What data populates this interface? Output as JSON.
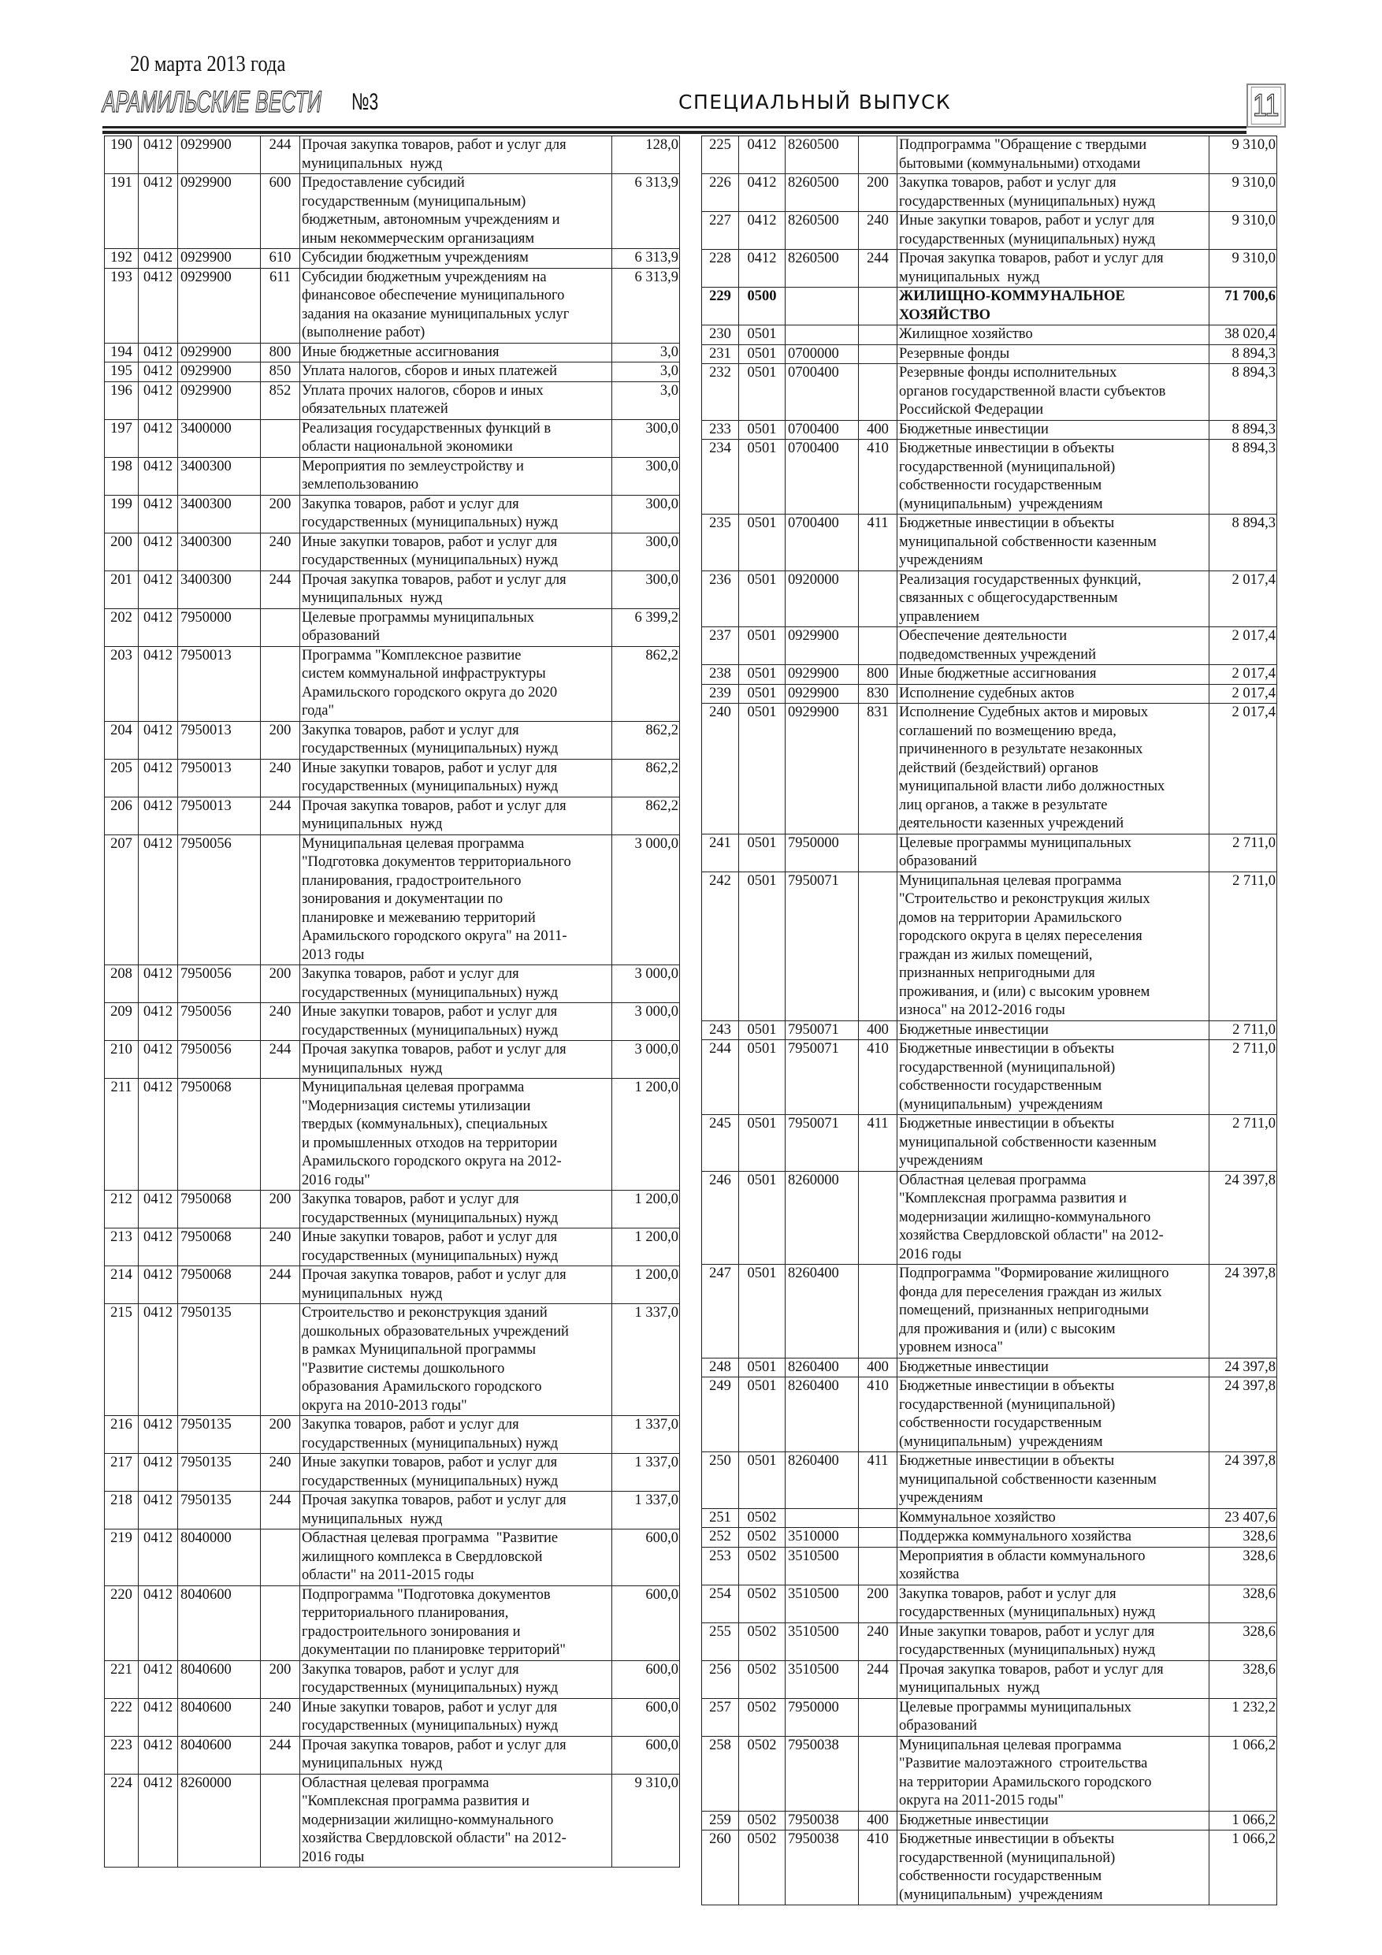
{
  "header": {
    "date": "20 марта 2013 года",
    "masthead": "АРАМИЛЬСКИЕ ВЕСТИ",
    "issue": "№3",
    "section": "СПЕЦИАЛЬНЫЙ ВЫПУСК",
    "page_number": "11"
  },
  "left_table": [
    [
      "190",
      "0412",
      "0929900",
      "244",
      "Прочая закупка товаров, работ и услуг для\nмуниципальных  нужд",
      "128,0"
    ],
    [
      "191",
      "0412",
      "0929900",
      "600",
      "Предоставление субсидий\nгосударственным (муниципальным)\nбюджетным, автономным учреждениям и\nиным некоммерческим организациям",
      "6 313,9"
    ],
    [
      "192",
      "0412",
      "0929900",
      "610",
      "Субсидии бюджетным учреждениям",
      "6 313,9"
    ],
    [
      "193",
      "0412",
      "0929900",
      "611",
      "Субсидии бюджетным учреждениям на\nфинансовое обеспечение муниципального\nзадания на оказание муниципальных услуг\n(выполнение работ)",
      "6 313,9"
    ],
    [
      "194",
      "0412",
      "0929900",
      "800",
      "Иные бюджетные ассигнования",
      "3,0"
    ],
    [
      "195",
      "0412",
      "0929900",
      "850",
      "Уплата налогов, сборов и иных платежей",
      "3,0"
    ],
    [
      "196",
      "0412",
      "0929900",
      "852",
      "Уплата прочих налогов, сборов и иных\nобязательных платежей",
      "3,0"
    ],
    [
      "197",
      "0412",
      "3400000",
      "",
      "Реализация государственных функций в\nобласти национальной экономики",
      "300,0"
    ],
    [
      "198",
      "0412",
      "3400300",
      "",
      "Мероприятия по землеустройству и\nземлепользованию",
      "300,0"
    ],
    [
      "199",
      "0412",
      "3400300",
      "200",
      "Закупка товаров, работ и услуг для\nгосударственных (муниципальных) нужд",
      "300,0"
    ],
    [
      "200",
      "0412",
      "3400300",
      "240",
      "Иные закупки товаров, работ и услуг для\nгосударственных (муниципальных) нужд",
      "300,0"
    ],
    [
      "201",
      "0412",
      "3400300",
      "244",
      "Прочая закупка товаров, работ и услуг для\nмуниципальных  нужд",
      "300,0"
    ],
    [
      "202",
      "0412",
      "7950000",
      "",
      "Целевые программы муниципальных\nобразований",
      "6 399,2"
    ],
    [
      "203",
      "0412",
      "7950013",
      "",
      "Программа \"Комплексное развитие\nсистем коммунальной инфраструктуры\nАрамильского городского округа до 2020\nгода\"",
      "862,2"
    ],
    [
      "204",
      "0412",
      "7950013",
      "200",
      "Закупка товаров, работ и услуг для\nгосударственных (муниципальных) нужд",
      "862,2"
    ],
    [
      "205",
      "0412",
      "7950013",
      "240",
      "Иные закупки товаров, работ и услуг для\nгосударственных (муниципальных) нужд",
      "862,2"
    ],
    [
      "206",
      "0412",
      "7950013",
      "244",
      "Прочая закупка товаров, работ и услуг для\nмуниципальных  нужд",
      "862,2"
    ],
    [
      "207",
      "0412",
      "7950056",
      "",
      "Муниципальная целевая программа\n\"Подготовка документов территориального\nпланирования, градостроительного\nзонирования и документации по\nпланировке и межеванию территорий\nАрамильского городского округа\" на 2011-\n2013 годы",
      "3 000,0"
    ],
    [
      "208",
      "0412",
      "7950056",
      "200",
      "Закупка товаров, работ и услуг для\nгосударственных (муниципальных) нужд",
      "3 000,0"
    ],
    [
      "209",
      "0412",
      "7950056",
      "240",
      "Иные закупки товаров, работ и услуг для\nгосударственных (муниципальных) нужд",
      "3 000,0"
    ],
    [
      "210",
      "0412",
      "7950056",
      "244",
      "Прочая закупка товаров, работ и услуг для\nмуниципальных  нужд",
      "3 000,0"
    ],
    [
      "211",
      "0412",
      "7950068",
      "",
      "Муниципальная целевая программа\n\"Модернизация системы утилизации\nтвердых (коммунальных), специальных\nи промышленных отходов на территории\nАрамильского городского округа на 2012-\n2016 годы\"",
      "1 200,0"
    ],
    [
      "212",
      "0412",
      "7950068",
      "200",
      "Закупка товаров, работ и услуг для\nгосударственных (муниципальных) нужд",
      "1 200,0"
    ],
    [
      "213",
      "0412",
      "7950068",
      "240",
      "Иные закупки товаров, работ и услуг для\nгосударственных (муниципальных) нужд",
      "1 200,0"
    ],
    [
      "214",
      "0412",
      "7950068",
      "244",
      "Прочая закупка товаров, работ и услуг для\nмуниципальных  нужд",
      "1 200,0"
    ],
    [
      "215",
      "0412",
      "7950135",
      "",
      "Строительство и реконструкция зданий\nдошкольных образовательных учреждений\nв рамках Муниципальной программы\n\"Развитие системы дошкольного\nобразования Арамильского городского\nокруга на 2010-2013 годы\"",
      "1 337,0"
    ],
    [
      "216",
      "0412",
      "7950135",
      "200",
      "Закупка товаров, работ и услуг для\nгосударственных (муниципальных) нужд",
      "1 337,0"
    ],
    [
      "217",
      "0412",
      "7950135",
      "240",
      "Иные закупки товаров, работ и услуг для\nгосударственных (муниципальных) нужд",
      "1 337,0"
    ],
    [
      "218",
      "0412",
      "7950135",
      "244",
      "Прочая закупка товаров, работ и услуг для\nмуниципальных  нужд",
      "1 337,0"
    ],
    [
      "219",
      "0412",
      "8040000",
      "",
      "Областная целевая программа  \"Развитие\nжилищного комплекса в Свердловской\nобласти\" на 2011-2015 годы",
      "600,0"
    ],
    [
      "220",
      "0412",
      "8040600",
      "",
      "Подпрограмма \"Подготовка документов\nтерриториального планирования,\nградостроительного зонирования и\nдокументации по планировке территорий\"",
      "600,0"
    ],
    [
      "221",
      "0412",
      "8040600",
      "200",
      "Закупка товаров, работ и услуг для\nгосударственных (муниципальных) нужд",
      "600,0"
    ],
    [
      "222",
      "0412",
      "8040600",
      "240",
      "Иные закупки товаров, работ и услуг для\nгосударственных (муниципальных) нужд",
      "600,0"
    ],
    [
      "223",
      "0412",
      "8040600",
      "244",
      "Прочая закупка товаров, работ и услуг для\nмуниципальных  нужд",
      "600,0"
    ],
    [
      "224",
      "0412",
      "8260000",
      "",
      "Областная целевая программа\n\"Комплексная программа развития и\nмодернизации жилищно-коммунального\nхозяйства Свердловской области\" на 2012-\n2016 годы",
      "9 310,0"
    ]
  ],
  "right_table": [
    [
      "225",
      "0412",
      "8260500",
      "",
      "Подпрограмма \"Обращение с твердыми\nбытовыми (коммунальными) отходами",
      "9 310,0"
    ],
    [
      "226",
      "0412",
      "8260500",
      "200",
      "Закупка товаров, работ и услуг для\nгосударственных (муниципальных) нужд",
      "9 310,0"
    ],
    [
      "227",
      "0412",
      "8260500",
      "240",
      "Иные закупки товаров, работ и услуг для\nгосударственных (муниципальных) нужд",
      "9 310,0"
    ],
    [
      "228",
      "0412",
      "8260500",
      "244",
      "Прочая закупка товаров, работ и услуг для\nмуниципальных  нужд",
      "9 310,0"
    ],
    [
      "229",
      "0500",
      "",
      "",
      "ЖИЛИЩНО-КОММУНАЛЬНОЕ\nХОЗЯЙСТВО",
      "71 700,6"
    ],
    [
      "230",
      "0501",
      "",
      "",
      "Жилищное хозяйство",
      "38 020,4"
    ],
    [
      "231",
      "0501",
      "0700000",
      "",
      "Резервные фонды",
      "8 894,3"
    ],
    [
      "232",
      "0501",
      "0700400",
      "",
      "Резервные фонды исполнительных\nорганов государственной власти субъектов\nРоссийской Федерации",
      "8 894,3"
    ],
    [
      "233",
      "0501",
      "0700400",
      "400",
      "Бюджетные инвестиции",
      "8 894,3"
    ],
    [
      "234",
      "0501",
      "0700400",
      "410",
      "Бюджетные инвестиции в объекты\nгосударственной (муниципальной)\nсобственности государственным\n(муниципальным)  учреждениям",
      "8 894,3"
    ],
    [
      "235",
      "0501",
      "0700400",
      "411",
      "Бюджетные инвестиции в объекты\nмуниципальной собственности казенным\nучреждениям",
      "8 894,3"
    ],
    [
      "236",
      "0501",
      "0920000",
      "",
      "Реализация государственных функций,\nсвязанных с общегосударственным\nуправлением",
      "2 017,4"
    ],
    [
      "237",
      "0501",
      "0929900",
      "",
      "Обеспечение деятельности\nподведомственных учреждений",
      "2 017,4"
    ],
    [
      "238",
      "0501",
      "0929900",
      "800",
      "Иные бюджетные ассигнования",
      "2 017,4"
    ],
    [
      "239",
      "0501",
      "0929900",
      "830",
      "Исполнение судебных актов",
      "2 017,4"
    ],
    [
      "240",
      "0501",
      "0929900",
      "831",
      "Исполнение Судебных актов и мировых\nсоглашений по возмещению вреда,\nпричиненного в результате незаконных\nдействий (бездействий) органов\nмуниципальной власти либо должностных\nлиц органов, а также в результате\nдеятельности казенных учреждений",
      "2 017,4"
    ],
    [
      "241",
      "0501",
      "7950000",
      "",
      "Целевые программы муниципальных\nобразований",
      "2 711,0"
    ],
    [
      "242",
      "0501",
      "7950071",
      "",
      "Муниципальная целевая программа\n\"Строительство и реконструкция жилых\nдомов на территории Арамильского\nгородского округа в целях переселения\nграждан из жилых помещений,\nпризнанных непригодными для\nпроживания, и (или) с высоким уровнем\nизноса\" на 2012-2016 годы",
      "2 711,0"
    ],
    [
      "243",
      "0501",
      "7950071",
      "400",
      "Бюджетные инвестиции",
      "2 711,0"
    ],
    [
      "244",
      "0501",
      "7950071",
      "410",
      "Бюджетные инвестиции в объекты\nгосударственной (муниципальной)\nсобственности государственным\n(муниципальным)  учреждениям",
      "2 711,0"
    ],
    [
      "245",
      "0501",
      "7950071",
      "411",
      "Бюджетные инвестиции в объекты\nмуниципальной собственности казенным\nучреждениям",
      "2 711,0"
    ],
    [
      "246",
      "0501",
      "8260000",
      "",
      "Областная целевая программа\n\"Комплексная программа развития и\nмодернизации жилищно-коммунального\nхозяйства Свердловской области\" на 2012-\n2016 годы",
      "24 397,8"
    ],
    [
      "247",
      "0501",
      "8260400",
      "",
      "Подпрограмма \"Формирование жилищного\nфонда для переселения граждан из жилых\nпомещений, признанных непригодными\nдля проживания и (или) с высоким\nуровнем износа\"",
      "24 397,8"
    ],
    [
      "248",
      "0501",
      "8260400",
      "400",
      "Бюджетные инвестиции",
      "24 397,8"
    ],
    [
      "249",
      "0501",
      "8260400",
      "410",
      "Бюджетные инвестиции в объекты\nгосударственной (муниципальной)\nсобственности государственным\n(муниципальным)  учреждениям",
      "24 397,8"
    ],
    [
      "250",
      "0501",
      "8260400",
      "411",
      "Бюджетные инвестиции в объекты\nмуниципальной собственности казенным\nучреждениям",
      "24 397,8"
    ],
    [
      "251",
      "0502",
      "",
      "",
      "Коммунальное хозяйство",
      "23 407,6"
    ],
    [
      "252",
      "0502",
      "3510000",
      "",
      "Поддержка коммунального хозяйства",
      "328,6"
    ],
    [
      "253",
      "0502",
      "3510500",
      "",
      "Мероприятия в области коммунального\nхозяйства",
      "328,6"
    ],
    [
      "254",
      "0502",
      "3510500",
      "200",
      "Закупка товаров, работ и услуг для\nгосударственных (муниципальных) нужд",
      "328,6"
    ],
    [
      "255",
      "0502",
      "3510500",
      "240",
      "Иные закупки товаров, работ и услуг для\nгосударственных (муниципальных) нужд",
      "328,6"
    ],
    [
      "256",
      "0502",
      "3510500",
      "244",
      "Прочая закупка товаров, работ и услуг для\nмуниципальных  нужд",
      "328,6"
    ],
    [
      "257",
      "0502",
      "7950000",
      "",
      "Целевые программы муниципальных\nобразований",
      "1 232,2"
    ],
    [
      "258",
      "0502",
      "7950038",
      "",
      "Муниципальная целевая программа\n\"Развитие малоэтажного  строительства\nна территории Арамильского городского\nокруга на 2011-2015 годы\"",
      "1 066,2"
    ],
    [
      "259",
      "0502",
      "7950038",
      "400",
      "Бюджетные инвестиции",
      "1 066,2"
    ],
    [
      "260",
      "0502",
      "7950038",
      "410",
      "Бюджетные инвестиции в объекты\nгосударственной (муниципальной)\nсобственности государственным\n(муниципальным)  учреждениям",
      "1 066,2"
    ]
  ],
  "bold_rows": [
    "229"
  ]
}
